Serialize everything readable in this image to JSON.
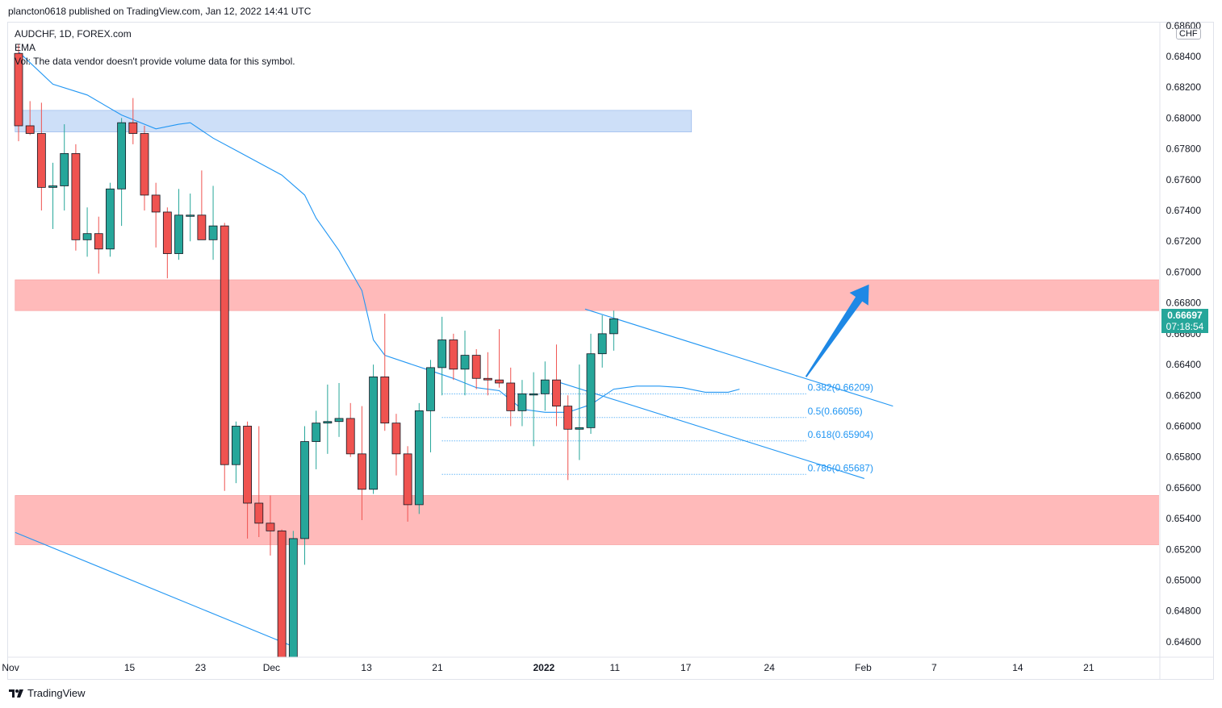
{
  "header": {
    "publisher_line": "plancton0618 published on TradingView.com, Jan 12, 2022 14:41 UTC"
  },
  "legend": {
    "symbol_line": "AUDCHF, 1D, FOREX.com",
    "indicator": "EMA",
    "volume_note": "Vol: The data vendor doesn't provide volume data for this symbol."
  },
  "price_label": {
    "price": "0.66697",
    "countdown": "07:18:54",
    "currency": "CHF"
  },
  "footer": {
    "brand": "TradingView"
  },
  "colors": {
    "up": "#26a69a",
    "down": "#ef5350",
    "ema": "#2196f3",
    "supply_zone": "#ffb3b3",
    "demand_zone": "#c4d9f7",
    "fib": "#2196f3",
    "arrow": "#1e88e5"
  },
  "chart_data": {
    "type": "candlestick",
    "title": "AUDCHF, 1D, FOREX.com",
    "ylim": [
      0.645,
      0.6862
    ],
    "y_ticks": [
      "0.68600",
      "0.68400",
      "0.68200",
      "0.68000",
      "0.67800",
      "0.67600",
      "0.67400",
      "0.67200",
      "0.67000",
      "0.66800",
      "0.66600",
      "0.66400",
      "0.66200",
      "0.66000",
      "0.65800",
      "0.65600",
      "0.65400",
      "0.65200",
      "0.65000",
      "0.64800",
      "0.64600"
    ],
    "x_ticks": [
      {
        "label": "Nov",
        "bar": -0.7
      },
      {
        "label": "15",
        "bar": 9.7
      },
      {
        "label": "23",
        "bar": 15.9
      },
      {
        "label": "Dec",
        "bar": 22.1
      },
      {
        "label": "13",
        "bar": 30.4
      },
      {
        "label": "21",
        "bar": 36.6
      },
      {
        "label": "2022",
        "bar": 45.9
      },
      {
        "label": "11",
        "bar": 52.1
      },
      {
        "label": "17",
        "bar": 58.3
      },
      {
        "label": "24",
        "bar": 65.6
      },
      {
        "label": "Feb",
        "bar": 73.8
      },
      {
        "label": "7",
        "bar": 80.0
      },
      {
        "label": "14",
        "bar": 87.3
      },
      {
        "label": "21",
        "bar": 93.5
      }
    ],
    "candles": [
      [
        0.6842,
        0.6848,
        0.6785,
        0.6795
      ],
      [
        0.6795,
        0.6811,
        0.6789,
        0.679
      ],
      [
        0.679,
        0.681,
        0.674,
        0.6755
      ],
      [
        0.6755,
        0.6771,
        0.6728,
        0.6756
      ],
      [
        0.6756,
        0.6796,
        0.674,
        0.6777
      ],
      [
        0.6777,
        0.6783,
        0.6714,
        0.6721
      ],
      [
        0.6721,
        0.6742,
        0.671,
        0.6725
      ],
      [
        0.6725,
        0.6736,
        0.6699,
        0.6715
      ],
      [
        0.6715,
        0.6758,
        0.671,
        0.6754
      ],
      [
        0.6754,
        0.68,
        0.673,
        0.6797
      ],
      [
        0.6797,
        0.6813,
        0.6783,
        0.679
      ],
      [
        0.679,
        0.6795,
        0.674,
        0.675
      ],
      [
        0.675,
        0.6758,
        0.6716,
        0.6739
      ],
      [
        0.6739,
        0.6742,
        0.6696,
        0.6712
      ],
      [
        0.6712,
        0.6754,
        0.6708,
        0.6737
      ],
      [
        0.6737,
        0.6751,
        0.672,
        0.6737
      ],
      [
        0.6737,
        0.6766,
        0.6721,
        0.6721
      ],
      [
        0.6721,
        0.6756,
        0.6708,
        0.673
      ],
      [
        0.673,
        0.6732,
        0.6558,
        0.6575
      ],
      [
        0.6575,
        0.6603,
        0.6563,
        0.66
      ],
      [
        0.66,
        0.6603,
        0.6527,
        0.655
      ],
      [
        0.655,
        0.66,
        0.6528,
        0.6537
      ],
      [
        0.6537,
        0.6555,
        0.6516,
        0.6532
      ],
      [
        0.6532,
        0.6533,
        0.645,
        0.645
      ],
      [
        0.645,
        0.6532,
        0.645,
        0.6527
      ],
      [
        0.6527,
        0.66,
        0.651,
        0.659
      ],
      [
        0.659,
        0.661,
        0.6572,
        0.6602
      ],
      [
        0.6602,
        0.6627,
        0.6582,
        0.6603
      ],
      [
        0.6603,
        0.6628,
        0.6593,
        0.6605
      ],
      [
        0.6605,
        0.6615,
        0.658,
        0.6582
      ],
      [
        0.6582,
        0.6613,
        0.6539,
        0.6559
      ],
      [
        0.6559,
        0.664,
        0.6556,
        0.6632
      ],
      [
        0.6632,
        0.6673,
        0.6597,
        0.6602
      ],
      [
        0.6602,
        0.6608,
        0.6568,
        0.6582
      ],
      [
        0.6582,
        0.6587,
        0.6538,
        0.6549
      ],
      [
        0.6549,
        0.6615,
        0.6543,
        0.661
      ],
      [
        0.661,
        0.6643,
        0.6583,
        0.6638
      ],
      [
        0.6638,
        0.6671,
        0.662,
        0.6656
      ],
      [
        0.6656,
        0.666,
        0.663,
        0.6637
      ],
      [
        0.6637,
        0.6662,
        0.662,
        0.6646
      ],
      [
        0.6646,
        0.665,
        0.6624,
        0.6631
      ],
      [
        0.6631,
        0.6648,
        0.662,
        0.663
      ],
      [
        0.663,
        0.6663,
        0.6625,
        0.6628
      ],
      [
        0.6628,
        0.6638,
        0.66,
        0.661
      ],
      [
        0.661,
        0.663,
        0.66,
        0.6621
      ],
      [
        0.6621,
        0.6635,
        0.6587,
        0.6621
      ],
      [
        0.6621,
        0.6642,
        0.661,
        0.663
      ],
      [
        0.663,
        0.6653,
        0.66,
        0.6613
      ],
      [
        0.6613,
        0.662,
        0.6565,
        0.6598
      ],
      [
        0.6598,
        0.664,
        0.6578,
        0.6599
      ],
      [
        0.6599,
        0.666,
        0.6595,
        0.6647
      ],
      [
        0.6647,
        0.6672,
        0.6638,
        0.666
      ],
      [
        0.666,
        0.6675,
        0.6649,
        0.66697
      ]
    ],
    "ema": [
      [
        0,
        0.6843
      ],
      [
        3,
        0.6822
      ],
      [
        6,
        0.6815
      ],
      [
        9,
        0.6802
      ],
      [
        12,
        0.6793
      ],
      [
        14,
        0.6796
      ],
      [
        15,
        0.6797
      ],
      [
        17,
        0.6787
      ],
      [
        19,
        0.6779
      ],
      [
        22,
        0.6767
      ],
      [
        23,
        0.6763
      ],
      [
        25,
        0.675
      ],
      [
        26,
        0.6735
      ],
      [
        28,
        0.6714
      ],
      [
        30,
        0.6688
      ],
      [
        31,
        0.6656
      ],
      [
        32,
        0.6646
      ],
      [
        34,
        0.6641
      ],
      [
        36,
        0.6636
      ],
      [
        38,
        0.6631
      ],
      [
        40,
        0.6625
      ],
      [
        42,
        0.6623
      ],
      [
        44,
        0.6611
      ],
      [
        46,
        0.6609
      ],
      [
        48,
        0.6609
      ],
      [
        50,
        0.6614
      ],
      [
        52,
        0.6624
      ],
      [
        54,
        0.6626
      ],
      [
        56,
        0.6626
      ],
      [
        58,
        0.6625
      ],
      [
        60,
        0.6622
      ],
      [
        62,
        0.6622
      ],
      [
        63,
        0.6624
      ]
    ],
    "zones": [
      {
        "name": "upper-demand-zone",
        "type": "demand",
        "from": 0.6791,
        "to": 0.6805,
        "bar_start": -0.3,
        "bar_end": 58.8
      },
      {
        "name": "supply-zone-middle",
        "type": "supply",
        "from": 0.6675,
        "to": 0.6695,
        "bar_start": -0.3,
        "bar_end": 112.3
      },
      {
        "name": "support-zone-lower",
        "type": "supply",
        "from": 0.6523,
        "to": 0.6555,
        "bar_start": -0.3,
        "bar_end": 128.1
      }
    ],
    "fibonacci": [
      {
        "label": "0.382(0.66209)",
        "value": 0.66209
      },
      {
        "label": "0.5(0.66056)",
        "value": 0.66056
      },
      {
        "label": "0.618(0.65904)",
        "value": 0.65904
      },
      {
        "label": "0.786(0.65687)",
        "value": 0.65687
      }
    ],
    "trendlines": [
      {
        "name": "channel-upper-line",
        "from": [
          49.5,
          0.6676
        ],
        "to": [
          76.4,
          0.6613
        ]
      },
      {
        "name": "channel-lower-line",
        "from": [
          47.0,
          0.6629
        ],
        "to": [
          73.9,
          0.6566
        ]
      },
      {
        "name": "long-downtrend-line",
        "from": [
          -0.3,
          0.6531
        ],
        "to": [
          24.3,
          0.6456
        ]
      }
    ],
    "projection_arrow": {
      "from": [
        68.8,
        0.6632
      ],
      "to": [
        74.3,
        0.6692
      ]
    }
  }
}
